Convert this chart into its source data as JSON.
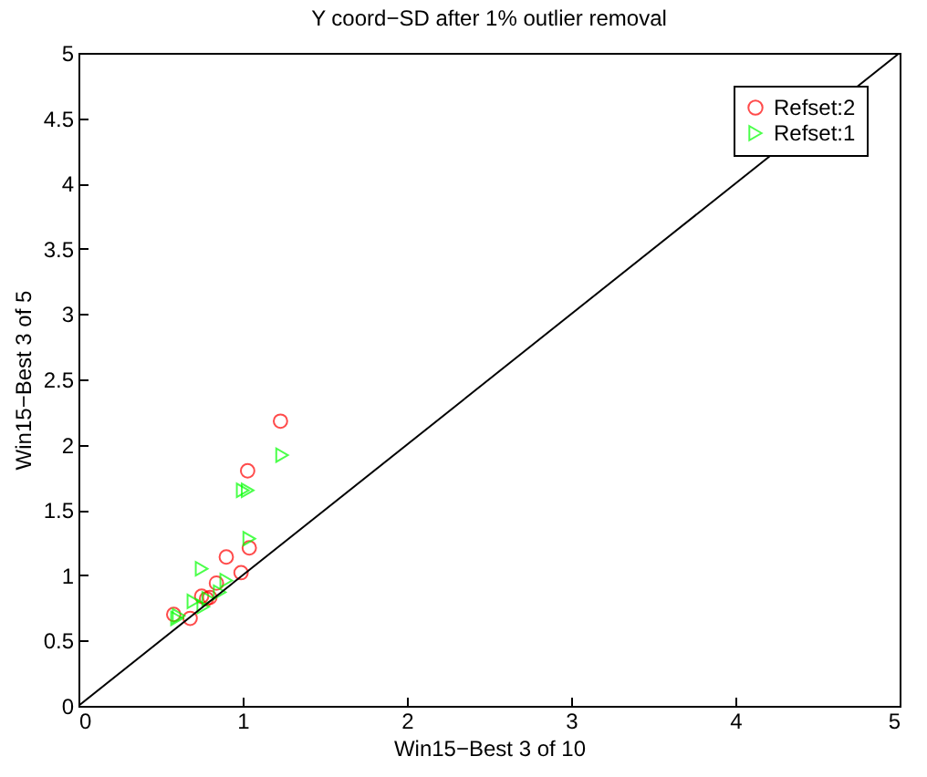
{
  "chart_data": {
    "type": "scatter",
    "title": "Y coord−SD after 1% outlier removal",
    "xlabel": "Win15−Best 3 of 10",
    "ylabel": "Win15−Best 3 of 5",
    "xlim": [
      0,
      5
    ],
    "ylim": [
      0,
      5
    ],
    "xticks": [
      0,
      1,
      2,
      3,
      4,
      5
    ],
    "yticks": [
      0,
      0.5,
      1,
      1.5,
      2,
      2.5,
      3,
      3.5,
      4,
      4.5,
      5
    ],
    "grid": false,
    "legend": "top right",
    "series": [
      {
        "name": "Refset:2",
        "color": "#ff0000",
        "marker": "circle",
        "x": [
          1.23,
          1.03,
          0.9,
          1.04,
          0.99,
          0.84,
          0.75,
          0.78,
          0.8,
          0.68,
          0.58
        ],
        "values": [
          2.18,
          1.8,
          1.14,
          1.21,
          1.02,
          0.94,
          0.84,
          0.82,
          0.83,
          0.67,
          0.7
        ]
      },
      {
        "name": "Refset:1",
        "color": "#00ff00",
        "marker": "triangle",
        "x": [
          1.24,
          1.03,
          1.0,
          1.04,
          0.75,
          0.9,
          0.86,
          0.7,
          0.76,
          0.79,
          0.61,
          0.6
        ],
        "values": [
          1.92,
          1.65,
          1.65,
          1.28,
          1.05,
          0.96,
          0.87,
          0.8,
          0.76,
          0.82,
          0.69,
          0.67
        ]
      },
      {
        "type": "line",
        "color": "#000000",
        "x": [
          0,
          5
        ],
        "values": [
          0,
          5
        ]
      }
    ]
  }
}
